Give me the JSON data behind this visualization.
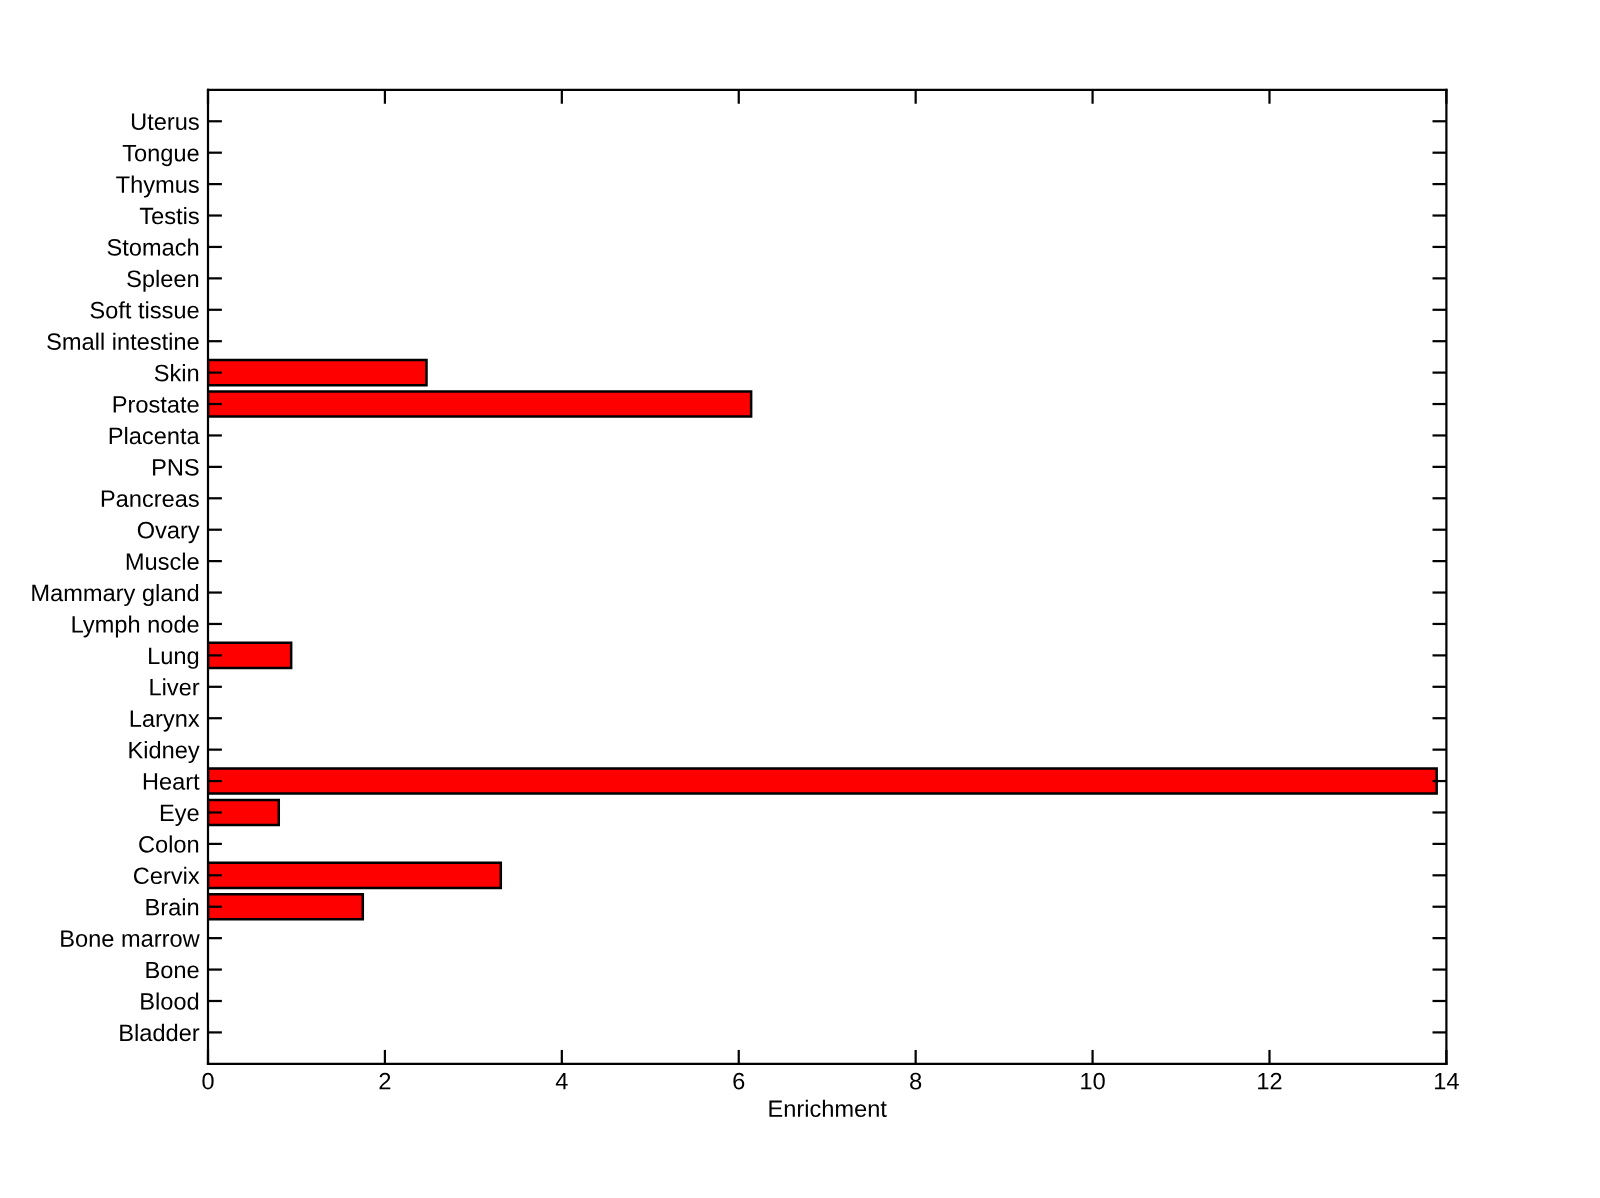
{
  "chart_data": {
    "type": "bar",
    "orientation": "horizontal",
    "xlabel": "Enrichment",
    "categories": [
      "Uterus",
      "Tongue",
      "Thymus",
      "Testis",
      "Stomach",
      "Spleen",
      "Soft tissue",
      "Small intestine",
      "Skin",
      "Prostate",
      "Placenta",
      "PNS",
      "Pancreas",
      "Ovary",
      "Muscle",
      "Mammary gland",
      "Lymph node",
      "Lung",
      "Liver",
      "Larynx",
      "Kidney",
      "Heart",
      "Eye",
      "Colon",
      "Cervix",
      "Brain",
      "Bone marrow",
      "Bone",
      "Blood",
      "Bladder"
    ],
    "values": [
      0,
      0,
      0,
      0,
      0,
      0,
      0,
      0,
      2.47,
      6.14,
      0,
      0,
      0,
      0,
      0,
      0,
      0,
      0.94,
      0,
      0,
      0,
      13.89,
      0.8,
      0,
      3.31,
      1.75,
      0,
      0,
      0,
      0
    ],
    "color": "#ff0000",
    "xlim": [
      0,
      14
    ],
    "xticks": [
      0,
      2,
      4,
      6,
      8,
      10,
      12,
      14
    ],
    "grid": false
  }
}
